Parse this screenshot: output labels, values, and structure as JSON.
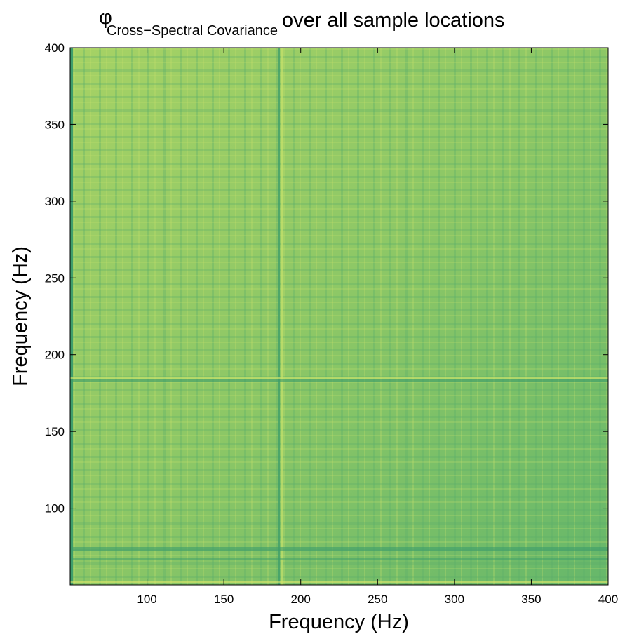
{
  "chart_data": {
    "type": "heatmap",
    "title_symbol": "φ",
    "title_subscript": "Cross−Spectral Covariance",
    "title": "over all sample locations",
    "x_label": "Frequency (Hz)",
    "y_label": "Frequency (Hz)",
    "xlim": [
      50,
      400
    ],
    "xticks": [
      100,
      150,
      200,
      250,
      300,
      350,
      400
    ],
    "ylim": [
      50,
      400
    ],
    "yticks": [
      100,
      150,
      200,
      250,
      300,
      350,
      400
    ]
  }
}
